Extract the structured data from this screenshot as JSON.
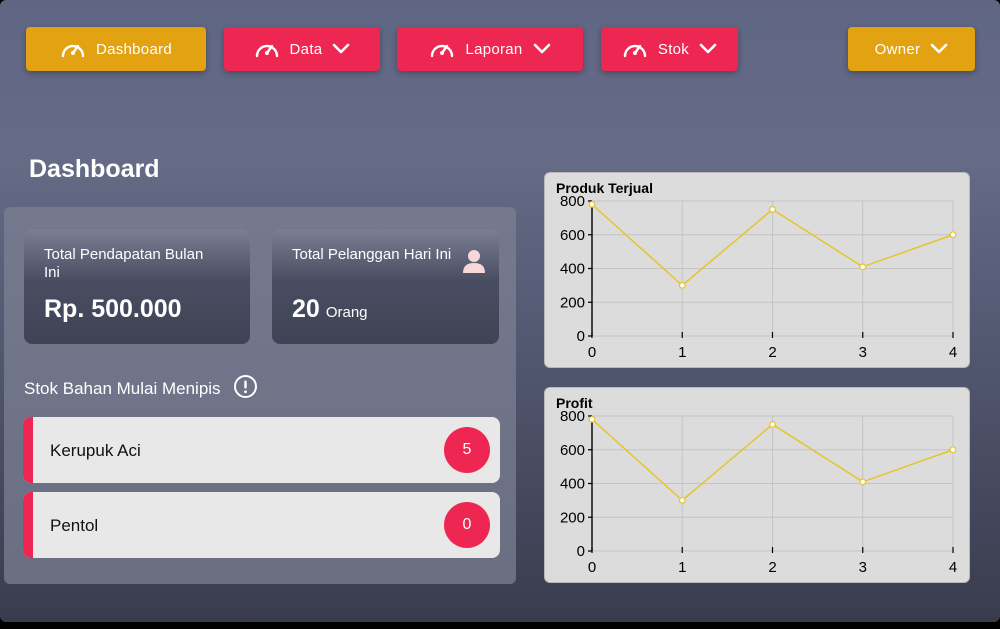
{
  "nav": {
    "dashboard_label": "Dashboard",
    "data_label": "Data",
    "laporan_label": "Laporan",
    "stok_label": "Stok",
    "owner_label": "Owner"
  },
  "colors": {
    "gold": "#e2a212",
    "red": "#ee2652",
    "line": "#e6c42a"
  },
  "page_title": "Dashboard",
  "stats": {
    "pendapatan": {
      "label": "Total Pendapatan Bulan Ini",
      "value": "Rp. 500.000"
    },
    "pelanggan": {
      "label": "Total Pelanggan Hari Ini",
      "value": "20",
      "unit": "Orang"
    }
  },
  "stok": {
    "title": "Stok Bahan Mulai Menipis",
    "items": [
      {
        "name": "Kerupuk Aci",
        "count": "5"
      },
      {
        "name": "Pentol",
        "count": "0"
      }
    ]
  },
  "chart_data": [
    {
      "type": "line",
      "title": "Produk Terjual",
      "x": [
        0,
        1,
        2,
        3,
        4
      ],
      "values": [
        780,
        300,
        750,
        410,
        600
      ],
      "ylim": [
        0,
        800
      ],
      "yticks": [
        0,
        200,
        400,
        600,
        800
      ],
      "grid": true
    },
    {
      "type": "line",
      "title": "Profit",
      "x": [
        0,
        1,
        2,
        3,
        4
      ],
      "values": [
        780,
        300,
        750,
        410,
        600
      ],
      "ylim": [
        0,
        800
      ],
      "yticks": [
        0,
        200,
        400,
        600,
        800
      ],
      "grid": true
    }
  ]
}
